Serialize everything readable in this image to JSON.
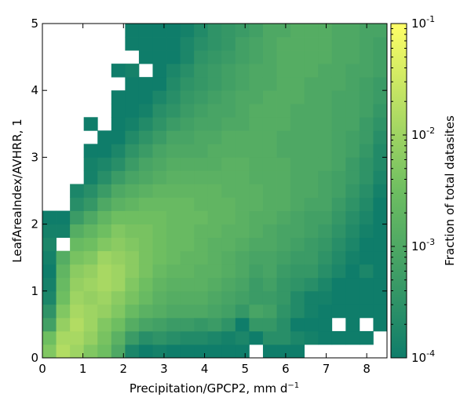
{
  "chart_data": {
    "type": "heatmap",
    "xlabel": "Precipitation/GPCP2,  mm d",
    "xlabel_sup": "−1",
    "ylabel": "LeafAreaIndex/AVHRR,  1",
    "colorbar_label": "Fraction of total datasites",
    "xlim": [
      0,
      8.5
    ],
    "ylim": [
      0,
      5
    ],
    "x_bin_width": 0.34,
    "y_bin_width": 0.2,
    "x_ticks": [
      0,
      1,
      2,
      3,
      4,
      5,
      6,
      7,
      8
    ],
    "y_ticks": [
      0,
      1,
      2,
      3,
      4,
      5
    ],
    "x_tick_labels": [
      "0",
      "1",
      "2",
      "3",
      "4",
      "5",
      "6",
      "7",
      "8"
    ],
    "y_tick_labels": [
      "0",
      "1",
      "2",
      "3",
      "4",
      "5"
    ],
    "colorbar": {
      "scale": "log",
      "vmin": 0.0001,
      "vmax": 0.1,
      "ticks": [
        {
          "base": "10",
          "exp": "-1"
        },
        {
          "base": "10",
          "exp": "-2"
        },
        {
          "base": "10",
          "exp": "-3"
        },
        {
          "base": "10",
          "exp": "-4"
        }
      ],
      "colors": [
        "#0f7d6a",
        "#6ebe61",
        "#ffff66"
      ]
    },
    "rows_note": "rows listed from y bin [0,0.2) upward; null = empty bin; values in log10 of fraction",
    "rows": [
      [
        -2.3,
        -1.8,
        -2.0,
        -2.3,
        -2.5,
        -3.0,
        -3.8,
        -4.0,
        -3.9,
        -4.0,
        -4.0,
        -4.0,
        -4.0,
        -4.0,
        -4.0,
        null,
        -4.0,
        -4.0,
        -4.0,
        null,
        null,
        null,
        null,
        null,
        null
      ],
      [
        -2.5,
        -1.9,
        -1.9,
        -2.1,
        -2.4,
        -2.8,
        -3.3,
        -3.6,
        -3.5,
        -3.6,
        -3.7,
        -3.7,
        -3.8,
        -3.9,
        -3.8,
        -4.0,
        -3.6,
        -3.6,
        -3.8,
        -3.9,
        -4.0,
        -4.0,
        -4.0,
        -4.0,
        null
      ],
      [
        -3.2,
        -2.1,
        -1.8,
        -2.0,
        -2.3,
        -2.5,
        -2.9,
        -3.1,
        -3.2,
        -3.3,
        -3.3,
        -3.4,
        -3.3,
        -3.5,
        -4.0,
        -3.4,
        -3.4,
        -3.6,
        -4.0,
        -4.0,
        -4.0,
        null,
        -4.0,
        null,
        -4.0
      ],
      [
        -3.5,
        -2.3,
        -1.9,
        -2.0,
        -2.1,
        -2.3,
        -2.6,
        -2.8,
        -2.9,
        -3.0,
        -3.0,
        -3.0,
        -3.1,
        -3.2,
        -3.4,
        -3.1,
        -3.2,
        -3.5,
        -3.7,
        -3.9,
        -4.0,
        -4.0,
        -4.0,
        -4.0,
        -4.0
      ],
      [
        -3.8,
        -2.5,
        -2.0,
        -2.1,
        -2.0,
        -2.2,
        -2.4,
        -2.6,
        -2.8,
        -2.9,
        -2.9,
        -2.9,
        -3.0,
        -3.1,
        -3.2,
        -3.3,
        -3.3,
        -3.4,
        -3.7,
        -3.9,
        -3.9,
        -4.0,
        -4.0,
        -4.0,
        -4.0
      ],
      [
        -3.9,
        -2.6,
        -2.1,
        -2.0,
        -1.9,
        -2.0,
        -2.3,
        -2.5,
        -2.7,
        -2.8,
        -2.8,
        -2.8,
        -2.9,
        -3.0,
        -3.1,
        -3.3,
        -3.2,
        -3.4,
        -3.5,
        -3.6,
        -3.8,
        -4.0,
        -4.0,
        -4.0,
        -4.0
      ],
      [
        -4.0,
        -2.7,
        -2.2,
        -2.1,
        -1.9,
        -2.0,
        -2.2,
        -2.4,
        -2.6,
        -2.7,
        -2.7,
        -2.8,
        -2.8,
        -2.9,
        -3.0,
        -3.2,
        -3.1,
        -3.3,
        -3.4,
        -3.4,
        -3.6,
        -3.8,
        -4.0,
        -3.8,
        -4.0
      ],
      [
        -3.9,
        -2.9,
        -2.4,
        -2.3,
        -2.0,
        -2.1,
        -2.2,
        -2.4,
        -2.5,
        -2.6,
        -2.7,
        -2.7,
        -2.8,
        -2.9,
        -3.0,
        -3.1,
        -3.1,
        -3.2,
        -3.3,
        -3.3,
        -3.5,
        -3.7,
        -3.9,
        -4.0,
        -4.0
      ],
      [
        -3.8,
        null,
        -2.6,
        -2.5,
        -2.3,
        -2.2,
        -2.3,
        -2.4,
        -2.5,
        -2.6,
        -2.6,
        -2.7,
        -2.8,
        -2.8,
        -2.9,
        -3.0,
        -3.0,
        -3.1,
        -3.2,
        -3.3,
        -3.4,
        -3.6,
        -3.8,
        -4.0,
        -4.0
      ],
      [
        -3.9,
        -3.9,
        -2.9,
        -2.7,
        -2.5,
        -2.3,
        -2.4,
        -2.4,
        -2.5,
        -2.6,
        -2.6,
        -2.7,
        -2.7,
        -2.8,
        -2.8,
        -2.9,
        -3.0,
        -3.1,
        -3.1,
        -3.2,
        -3.3,
        -3.5,
        -3.7,
        -3.9,
        -4.0
      ],
      [
        -4.0,
        -4.0,
        -3.3,
        -3.0,
        -2.7,
        -2.5,
        -2.5,
        -2.5,
        -2.5,
        -2.6,
        -2.6,
        -2.6,
        -2.7,
        -2.7,
        -2.8,
        -2.9,
        -2.9,
        -3.0,
        -3.1,
        -3.2,
        -3.2,
        -3.4,
        -3.6,
        -3.8,
        -4.0
      ],
      [
        null,
        null,
        -3.6,
        -3.4,
        -3.0,
        -2.8,
        -2.7,
        -2.6,
        -2.6,
        -2.6,
        -2.6,
        -2.7,
        -2.7,
        -2.7,
        -2.8,
        -2.8,
        -2.9,
        -2.9,
        -3.0,
        -3.1,
        -3.1,
        -3.3,
        -3.5,
        -3.7,
        -4.0
      ],
      [
        null,
        null,
        -3.8,
        -3.6,
        -3.3,
        -3.0,
        -2.9,
        -2.8,
        -2.7,
        -2.7,
        -2.7,
        -2.7,
        -2.7,
        -2.8,
        -2.8,
        -2.8,
        -2.9,
        -2.9,
        -3.0,
        -3.0,
        -3.1,
        -3.2,
        -3.4,
        -3.6,
        -3.9
      ],
      [
        null,
        null,
        null,
        -3.9,
        -3.6,
        -3.3,
        -3.1,
        -3.0,
        -2.9,
        -2.8,
        -2.8,
        -2.8,
        -2.8,
        -2.8,
        -2.8,
        -2.9,
        -2.9,
        -2.9,
        -3.0,
        -3.0,
        -3.1,
        -3.2,
        -3.3,
        -3.5,
        -3.8
      ],
      [
        null,
        null,
        null,
        -3.9,
        -3.8,
        -3.6,
        -3.3,
        -3.1,
        -3.0,
        -2.9,
        -2.9,
        -2.9,
        -2.9,
        -2.8,
        -2.8,
        -2.9,
        -2.9,
        -2.9,
        -3.0,
        -3.0,
        -3.0,
        -3.1,
        -3.3,
        -3.5,
        -3.7
      ],
      [
        null,
        null,
        null,
        -4.0,
        -4.0,
        -3.8,
        -3.5,
        -3.3,
        -3.1,
        -3.0,
        -3.0,
        -3.0,
        -2.9,
        -2.9,
        -2.9,
        -2.9,
        -2.9,
        -3.0,
        -3.0,
        -3.0,
        -3.0,
        -3.1,
        -3.2,
        -3.4,
        -3.7
      ],
      [
        null,
        null,
        null,
        null,
        -4.0,
        -4.0,
        -3.7,
        -3.5,
        -3.3,
        -3.1,
        -3.1,
        -3.0,
        -3.0,
        -2.9,
        -2.9,
        -2.9,
        -2.9,
        -3.0,
        -3.0,
        -3.0,
        -3.0,
        -3.1,
        -3.2,
        -3.3,
        -3.6
      ],
      [
        null,
        null,
        null,
        -4.0,
        null,
        -4.0,
        -3.9,
        -3.7,
        -3.5,
        -3.3,
        -3.2,
        -3.1,
        -3.1,
        -3.0,
        -3.0,
        -2.9,
        -2.9,
        -2.9,
        -3.0,
        -3.0,
        -3.0,
        -3.1,
        -3.1,
        -3.3,
        -3.5
      ],
      [
        null,
        null,
        null,
        null,
        null,
        -4.0,
        -4.0,
        -3.9,
        -3.6,
        -3.5,
        -3.3,
        -3.2,
        -3.1,
        -3.1,
        -3.0,
        -2.9,
        -2.9,
        -2.9,
        -3.0,
        -3.0,
        -3.0,
        -3.1,
        -3.1,
        -3.2,
        -3.4
      ],
      [
        null,
        null,
        null,
        null,
        null,
        -4.0,
        -4.0,
        -4.0,
        -3.8,
        -3.6,
        -3.4,
        -3.3,
        -3.2,
        -3.1,
        -3.0,
        -3.0,
        -2.9,
        -2.9,
        -2.9,
        -3.0,
        -3.0,
        -3.1,
        -3.1,
        -3.2,
        -3.3
      ],
      [
        null,
        null,
        null,
        null,
        null,
        null,
        -4.0,
        -4.0,
        -4.0,
        -3.7,
        -3.5,
        -3.4,
        -3.3,
        -3.2,
        -3.1,
        -3.0,
        -3.0,
        -2.9,
        -2.9,
        -3.0,
        -3.0,
        -3.0,
        -3.1,
        -3.2,
        -3.3
      ],
      [
        null,
        null,
        null,
        null,
        null,
        -4.0,
        -3.9,
        null,
        -4.0,
        -3.8,
        -3.6,
        -3.4,
        -3.3,
        -3.2,
        -3.1,
        -3.0,
        -3.0,
        -2.9,
        -2.9,
        -2.9,
        -3.0,
        -3.0,
        -3.1,
        -3.1,
        -3.2
      ],
      [
        null,
        null,
        null,
        null,
        null,
        null,
        null,
        -4.0,
        -4.0,
        -4.0,
        -3.8,
        -3.5,
        -3.4,
        -3.3,
        -3.2,
        -3.1,
        -3.0,
        -2.9,
        -2.9,
        -2.9,
        -2.9,
        -3.0,
        -3.0,
        -3.1,
        -3.2
      ],
      [
        null,
        null,
        null,
        null,
        null,
        null,
        -4.0,
        -4.0,
        -4.0,
        -4.0,
        -3.8,
        -3.6,
        -3.5,
        -3.4,
        -3.2,
        -3.1,
        -3.0,
        -2.9,
        -2.9,
        -2.9,
        -2.9,
        -3.0,
        -3.0,
        -3.1,
        -3.2
      ],
      [
        null,
        null,
        null,
        null,
        null,
        null,
        -4.0,
        -4.0,
        -4.0,
        -4.0,
        -3.9,
        -3.7,
        -3.5,
        -3.4,
        -3.3,
        -3.2,
        -3.0,
        -3.0,
        -2.9,
        -2.9,
        -2.9,
        -3.0,
        -3.0,
        -3.1,
        -3.1
      ]
    ]
  }
}
